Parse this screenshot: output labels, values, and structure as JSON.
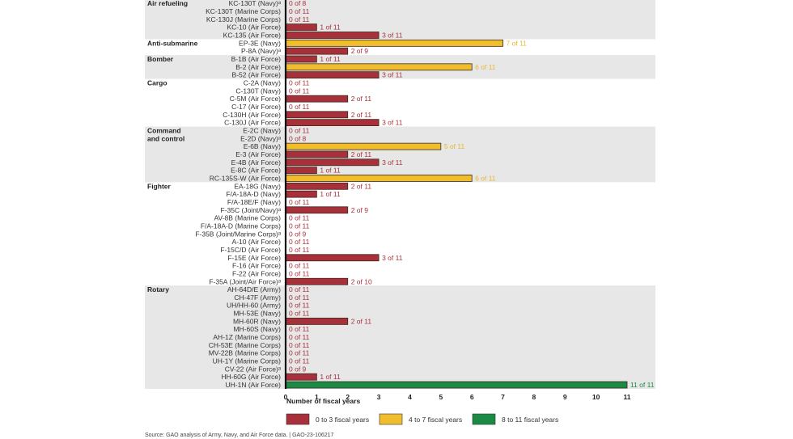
{
  "chart_data": {
    "type": "bar",
    "orientation": "horizontal",
    "title": "",
    "xlabel": "Number of fiscal years",
    "ylabel": "",
    "xlim": [
      0,
      11
    ],
    "xticks": [
      "0",
      "1",
      "2",
      "3",
      "4",
      "5",
      "6",
      "7",
      "8",
      "9",
      "10",
      "11"
    ],
    "grid": false,
    "colors": {
      "low": "#a8303b",
      "mid": "#f2bd2c",
      "high": "#1a8a45",
      "band": "#e7e7e7",
      "axis": "#111111"
    },
    "legend": {
      "placement": "bottom",
      "entries": [
        {
          "label": "0 to 3 fiscal years",
          "color": "#a8303b"
        },
        {
          "label": "4 to 7 fiscal years",
          "color": "#f2bd2c"
        },
        {
          "label": "8 to 11 fiscal years",
          "color": "#1a8a45"
        }
      ]
    },
    "groups": [
      {
        "name": "Air refueling",
        "shaded": true,
        "items": [
          {
            "label": "KC-130T (Navy)ᵃ",
            "value": 0,
            "total": 8
          },
          {
            "label": "KC-130T (Marine Corps)",
            "value": 0,
            "total": 11
          },
          {
            "label": "KC-130J (Marine Corps)",
            "value": 0,
            "total": 11
          },
          {
            "label": "KC-10 (Air Force)",
            "value": 1,
            "total": 11
          },
          {
            "label": "KC-135 (Air Force)",
            "value": 3,
            "total": 11
          }
        ]
      },
      {
        "name": "Anti-submarine",
        "shaded": false,
        "items": [
          {
            "label": "EP-3E (Navy)",
            "value": 7,
            "total": 11
          },
          {
            "label": "P-8A (Navy)ᵃ",
            "value": 2,
            "total": 9
          }
        ]
      },
      {
        "name": "Bomber",
        "shaded": true,
        "items": [
          {
            "label": "B-1B (Air Force)",
            "value": 1,
            "total": 11
          },
          {
            "label": "B-2 (Air Force)",
            "value": 6,
            "total": 11
          },
          {
            "label": "B-52 (Air Force)",
            "value": 3,
            "total": 11
          }
        ]
      },
      {
        "name": "Cargo",
        "shaded": false,
        "items": [
          {
            "label": "C-2A (Navy)",
            "value": 0,
            "total": 11
          },
          {
            "label": "C-130T (Navy)",
            "value": 0,
            "total": 11
          },
          {
            "label": "C-5M (Air Force)",
            "value": 2,
            "total": 11
          },
          {
            "label": "C-17 (Air Force)",
            "value": 0,
            "total": 11
          },
          {
            "label": "C-130H (Air Force)",
            "value": 2,
            "total": 11
          },
          {
            "label": "C-130J (Air Force)",
            "value": 3,
            "total": 11
          }
        ]
      },
      {
        "name": "Command\nand control",
        "shaded": true,
        "items": [
          {
            "label": "E-2C (Navy)",
            "value": 0,
            "total": 11
          },
          {
            "label": "E-2D (Navy)ᵃ",
            "value": 0,
            "total": 8
          },
          {
            "label": "E-6B (Navy)",
            "value": 5,
            "total": 11
          },
          {
            "label": "E-3 (Air Force)",
            "value": 2,
            "total": 11
          },
          {
            "label": "E-4B (Air Force)",
            "value": 3,
            "total": 11
          },
          {
            "label": "E-8C (Air Force)",
            "value": 1,
            "total": 11
          },
          {
            "label": "RC-135S-W (Air Force)",
            "value": 6,
            "total": 11
          }
        ]
      },
      {
        "name": "Fighter",
        "shaded": false,
        "items": [
          {
            "label": "EA-18G (Navy)",
            "value": 2,
            "total": 11
          },
          {
            "label": "F/A-18A-D (Navy)",
            "value": 1,
            "total": 11
          },
          {
            "label": "F/A-18E/F (Navy)",
            "value": 0,
            "total": 11
          },
          {
            "label": "F-35C (Joint/Navy)ᵃ",
            "value": 2,
            "total": 9
          },
          {
            "label": "AV-8B (Marine Corps)",
            "value": 0,
            "total": 11
          },
          {
            "label": "F/A-18A-D (Marine Corps)",
            "value": 0,
            "total": 11
          },
          {
            "label": "F-35B (Joint/Marine Corps)ᵃ",
            "value": 0,
            "total": 9
          },
          {
            "label": "A-10 (Air Force)",
            "value": 0,
            "total": 11
          },
          {
            "label": "F-15C/D (Air Force)",
            "value": 0,
            "total": 11
          },
          {
            "label": "F-15E (Air Force)",
            "value": 3,
            "total": 11
          },
          {
            "label": "F-16 (Air Force)",
            "value": 0,
            "total": 11
          },
          {
            "label": "F-22 (Air Force)",
            "value": 0,
            "total": 11
          },
          {
            "label": "F-35A (Joint/Air Force)ᵃ",
            "value": 2,
            "total": 10
          }
        ]
      },
      {
        "name": "Rotary",
        "shaded": true,
        "items": [
          {
            "label": "AH-64D/E (Army)",
            "value": 0,
            "total": 11
          },
          {
            "label": "CH-47F (Army)",
            "value": 0,
            "total": 11
          },
          {
            "label": "UH/HH-60 (Army)",
            "value": 0,
            "total": 11
          },
          {
            "label": "MH-53E (Navy)",
            "value": 0,
            "total": 11
          },
          {
            "label": "MH-60R (Navy)",
            "value": 2,
            "total": 11
          },
          {
            "label": "MH-60S (Navy)",
            "value": 0,
            "total": 11
          },
          {
            "label": "AH-1Z (Marine Corps)",
            "value": 0,
            "total": 11
          },
          {
            "label": "CH-53E (Marine Corps)",
            "value": 0,
            "total": 11
          },
          {
            "label": "MV-22B (Marine Corps)",
            "value": 0,
            "total": 11
          },
          {
            "label": "UH-1Y (Marine Corps)",
            "value": 0,
            "total": 11
          },
          {
            "label": "CV-22 (Air Force)ᵃ",
            "value": 0,
            "total": 9
          },
          {
            "label": "HH-60G (Air Force)",
            "value": 1,
            "total": 11
          },
          {
            "label": "UH-1N (Air Force)",
            "value": 11,
            "total": 11
          }
        ]
      }
    ]
  },
  "source": "Source: GAO analysis of Army, Navy, and Air Force data.  |  GAO-23-106217",
  "value_label_separator": "of"
}
